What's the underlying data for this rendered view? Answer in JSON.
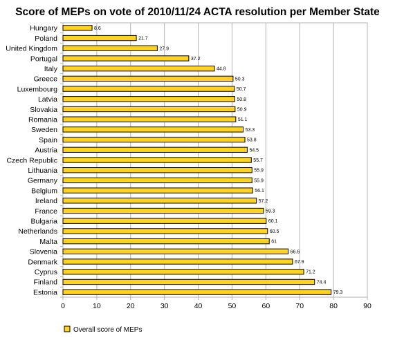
{
  "colors": {
    "bar_fill": "#ffd320",
    "bar_stroke": "#000000",
    "grid": "#b3b3b3",
    "axis": "#b3b3b3"
  },
  "chart_data": {
    "type": "bar",
    "orientation": "horizontal",
    "title": "Score of MEPs on vote of 2010/11/24 ACTA resolution per Member State",
    "xlabel": "",
    "ylabel": "",
    "xlim": [
      0,
      90
    ],
    "xticks": [
      "0",
      "10",
      "20",
      "30",
      "40",
      "50",
      "60",
      "70",
      "80",
      "90"
    ],
    "grid": "vertical",
    "legend_position": "bottom-left",
    "categories": [
      "Hungary",
      "Poland",
      "United Kingdom",
      "Portugal",
      "Italy",
      "Greece",
      "Luxembourg",
      "Latvia",
      "Slovakia",
      "Romania",
      "Sweden",
      "Spain",
      "Austria",
      "Czech Republic",
      "Lithuania",
      "Germany",
      "Belgium",
      "Ireland",
      "France",
      "Bulgaria",
      "Netherlands",
      "Malta",
      "Slovenia",
      "Denmark",
      "Cyprus",
      "Finland",
      "Estonia"
    ],
    "series": [
      {
        "name": "Overall score of MEPs",
        "values": [
          8.6,
          21.7,
          27.9,
          37.2,
          44.8,
          50.3,
          50.7,
          50.8,
          50.9,
          51.1,
          53.3,
          53.8,
          54.5,
          55.7,
          55.9,
          55.9,
          56.1,
          57.2,
          59.3,
          60.1,
          60.5,
          61,
          66.6,
          67.9,
          71.2,
          74.4,
          79.3
        ],
        "labels": [
          "8.6",
          "21.7",
          "27.9",
          "37.2",
          "44.8",
          "50.3",
          "50.7",
          "50.8",
          "50.9",
          "51.1",
          "53.3",
          "53.8",
          "54.5",
          "55.7",
          "55.9",
          "55.9",
          "56.1",
          "57.2",
          "59.3",
          "60.1",
          "60.5",
          "61",
          "66.6",
          "67.9",
          "71.2",
          "74.4",
          "79.3"
        ]
      }
    ]
  }
}
